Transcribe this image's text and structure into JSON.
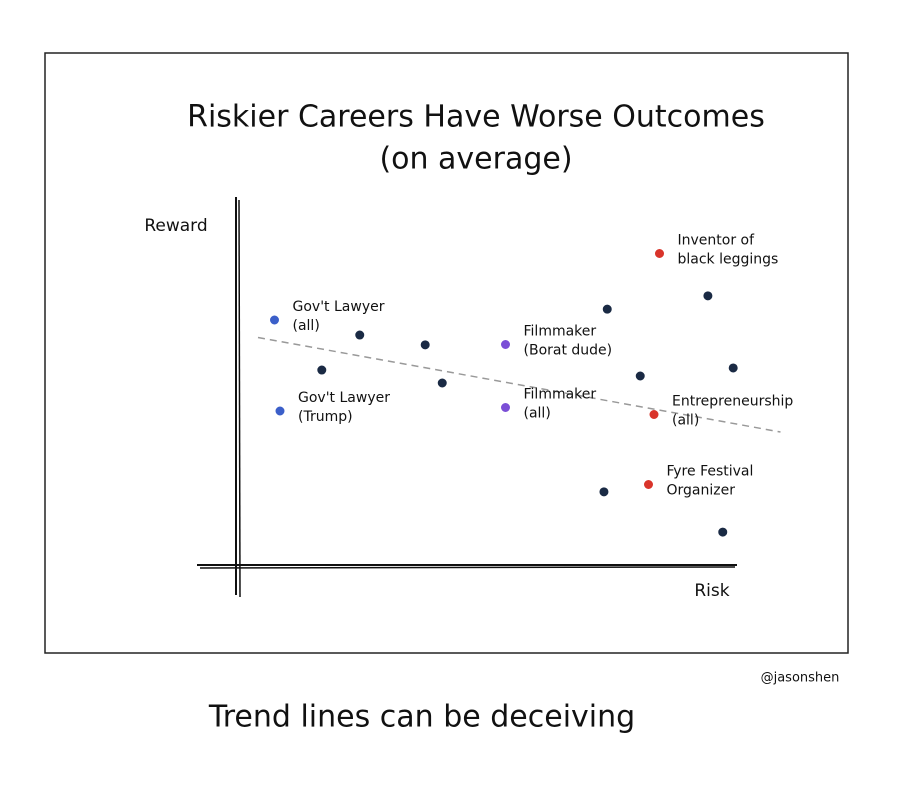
{
  "chart_data": {
    "type": "scatter",
    "title": [
      "Riskier Careers Have Worse Outcomes",
      "(on average)"
    ],
    "ylabel": "Reward",
    "xlabel": "Risk",
    "xlim": [
      0,
      100
    ],
    "ylim": [
      0,
      100
    ],
    "trendline": {
      "x": [
        4,
        99
      ],
      "y": [
        65,
        38
      ],
      "color": "#999999"
    },
    "points": [
      {
        "x": 7,
        "y": 70,
        "color": "#3b5fc9",
        "label": [
          "Gov't Lawyer",
          "(all)"
        ]
      },
      {
        "x": 8,
        "y": 44,
        "color": "#3b5fc9",
        "label": [
          "Gov't Lawyer",
          "(Trump)"
        ]
      },
      {
        "x": 49,
        "y": 63,
        "color": "#7b4fd6",
        "label": [
          "Filmmaker",
          "(Borat dude)"
        ]
      },
      {
        "x": 49,
        "y": 45,
        "color": "#7b4fd6",
        "label": [
          "Filmmaker",
          "(all)"
        ]
      },
      {
        "x": 77,
        "y": 89,
        "color": "#d9342b",
        "label": [
          "Inventor of",
          "black leggings"
        ]
      },
      {
        "x": 76,
        "y": 43,
        "color": "#d9342b",
        "label": [
          "Entrepreneurship",
          "(all)"
        ]
      },
      {
        "x": 75,
        "y": 23,
        "color": "#d9342b",
        "label": [
          "Fyre Festival",
          "Organizer"
        ]
      },
      {
        "x": 22.5,
        "y": 65.7,
        "color": "#1a2a44"
      },
      {
        "x": 15.6,
        "y": 55.7,
        "color": "#1a2a44"
      },
      {
        "x": 34.4,
        "y": 62.9,
        "color": "#1a2a44"
      },
      {
        "x": 37.5,
        "y": 52,
        "color": "#1a2a44"
      },
      {
        "x": 67.5,
        "y": 73.1,
        "color": "#1a2a44"
      },
      {
        "x": 85.8,
        "y": 76.9,
        "color": "#1a2a44"
      },
      {
        "x": 73.5,
        "y": 54,
        "color": "#1a2a44"
      },
      {
        "x": 90.4,
        "y": 56.3,
        "color": "#1a2a44"
      },
      {
        "x": 66.9,
        "y": 20.9,
        "color": "#1a2a44"
      },
      {
        "x": 88.5,
        "y": 9.4,
        "color": "#1a2a44"
      }
    ],
    "credit": "@jasonshen",
    "caption": "Trend lines can be deceiving"
  }
}
